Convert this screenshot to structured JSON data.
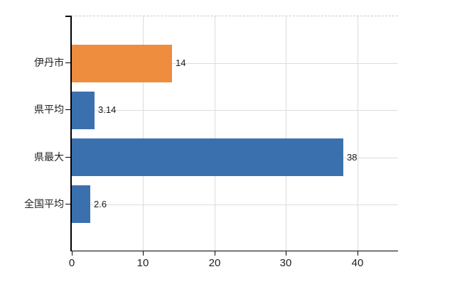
{
  "chart_data": {
    "type": "bar",
    "orientation": "horizontal",
    "title": "",
    "xlabel": "",
    "ylabel": "",
    "categories": [
      "伊丹市",
      "県平均",
      "県最大",
      "全国平均"
    ],
    "values": [
      14,
      3.14,
      38,
      2.6
    ],
    "value_labels": [
      "14",
      "3.14",
      "38",
      "2.6"
    ],
    "bar_colors": [
      "#ED8D3D",
      "#3B70AE",
      "#3B70AE",
      "#3B70AE"
    ],
    "x_tick_values": [
      0,
      10,
      20,
      30,
      40
    ],
    "x_tick_labels": [
      "0",
      "10",
      "20",
      "30",
      "40"
    ],
    "xlim": [
      0,
      45.7
    ],
    "grid": true,
    "legend": false,
    "colors": {
      "highlight_bar": "#ED8D3D",
      "default_bar": "#3B70AE",
      "gridline": "#DCDCDC",
      "top_border_dashed": "#C9C9C9",
      "axis": "#000000",
      "text": "#222222",
      "background": "#FFFFFF"
    }
  }
}
